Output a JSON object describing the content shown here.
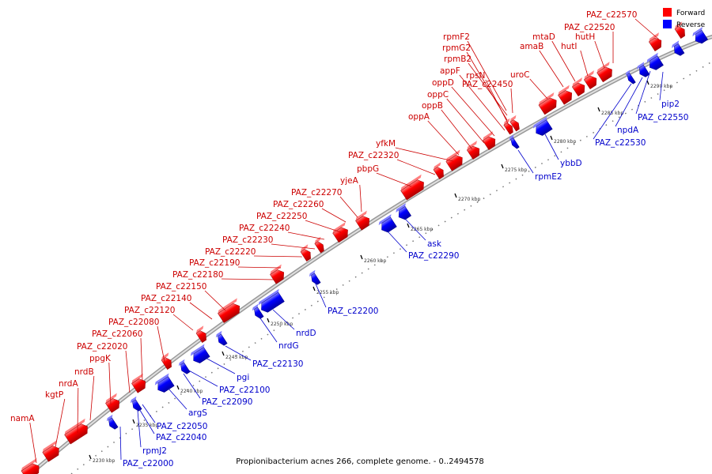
{
  "title": "Propionibacterium acnes 266, complete genome. - 0..2494578",
  "legend": {
    "forward": {
      "label": "Forward",
      "color": "#ff0000"
    },
    "reverse": {
      "label": "Reverse",
      "color": "#0000ff"
    }
  },
  "colors": {
    "forward_text": "#cc0000",
    "reverse_text": "#0000cc",
    "backbone": "#bbbbbb",
    "dots": "#666666"
  },
  "ticks": [
    "2230 kbp",
    "2235 kbp",
    "2240 kbp",
    "2245 kbp",
    "2250 kbp",
    "2255 kbp",
    "2260 kbp",
    "2265 kbp",
    "2270 kbp",
    "2275 kbp",
    "2280 kbp",
    "2285 kbp",
    "2290 kbp"
  ],
  "forward_labels": [
    "namA",
    "kgtP",
    "nrdA",
    "nrdB",
    "ppgK",
    "PAZ_c22020",
    "PAZ_c22060",
    "PAZ_c22080",
    "PAZ_c22120",
    "PAZ_c22140",
    "PAZ_c22150",
    "PAZ_c22180",
    "PAZ_c22190",
    "PAZ_c22220",
    "PAZ_c22230",
    "PAZ_c22240",
    "PAZ_c22250",
    "PAZ_c22260",
    "PAZ_c22270",
    "yjeA",
    "pbpG",
    "PAZ_c22320",
    "yfkM",
    "oppA",
    "oppB",
    "oppC",
    "oppD",
    "appF",
    "rpsN",
    "rpmB2",
    "rpmG2",
    "rpmF2",
    "PAZ_c22450",
    "uroC",
    "amaB",
    "mtaD",
    "hutI",
    "hutH",
    "PAZ_c22520",
    "PAZ_c22570"
  ],
  "reverse_labels": [
    "PAZ_c22000",
    "rpmJ2",
    "PAZ_c22040",
    "PAZ_c22050",
    "argS",
    "PAZ_c22090",
    "PAZ_c22100",
    "pgi",
    "PAZ_c22130",
    "nrdG",
    "nrdD",
    "PAZ_c22200",
    "PAZ_c22290",
    "ask",
    "rpmE2",
    "ybbD",
    "PAZ_c22530",
    "npdA",
    "PAZ_c22550",
    "pip2"
  ]
}
